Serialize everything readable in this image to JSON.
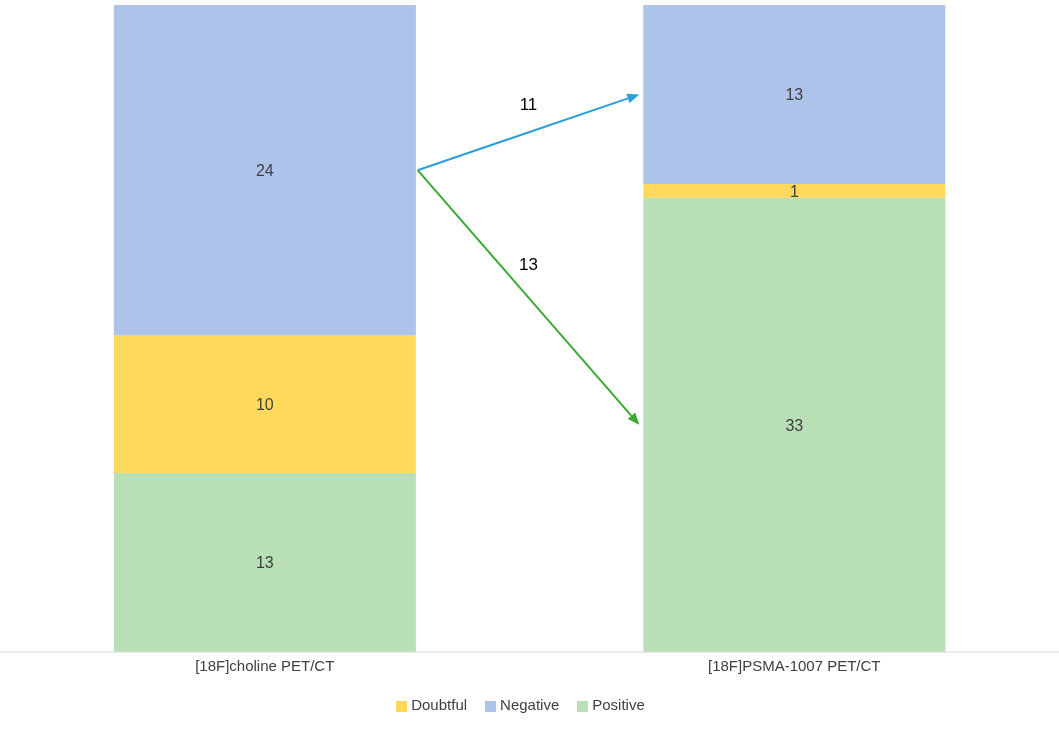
{
  "chart_data": {
    "type": "bar",
    "stacked": true,
    "categories": [
      "[18F]choline PET/CT",
      "[18F]PSMA-1007 PET/CT"
    ],
    "series": [
      {
        "name": "Positive",
        "color": "#b9dfb6",
        "values": [
          13,
          33
        ]
      },
      {
        "name": "Doubtful",
        "color": "#ffd95c",
        "values": [
          10,
          1
        ]
      },
      {
        "name": "Negative",
        "color": "#aec3ea",
        "values": [
          24,
          13
        ]
      }
    ],
    "data_labels": true,
    "legend": "bottom",
    "grid": false,
    "annotations": [
      "11",
      "13"
    ]
  }
}
